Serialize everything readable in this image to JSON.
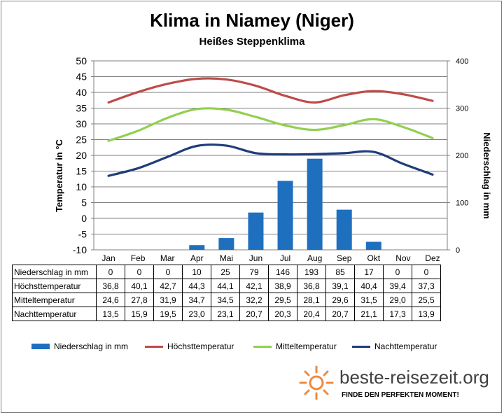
{
  "title": "Klima in Niamey (Niger)",
  "subtitle": "Heißes Steppenklima",
  "chart_data": {
    "type": "bar+line",
    "categories": [
      "Jan",
      "Feb",
      "Mar",
      "Apr",
      "Mai",
      "Jun",
      "Jul",
      "Aug",
      "Sep",
      "Okt",
      "Nov",
      "Dez"
    ],
    "ylabel_left": "Temperatur in °C",
    "ylabel_right": "Niederschlag in mm",
    "ylim_left": [
      -10,
      50
    ],
    "yticks_left": [
      "50",
      "45",
      "40",
      "35",
      "30",
      "25",
      "20",
      "15",
      "10",
      "5",
      "0",
      "-5",
      "-10"
    ],
    "ylim_right": [
      0,
      400
    ],
    "yticks_right": [
      "400",
      "300",
      "200",
      "100",
      "0"
    ],
    "grid": true,
    "series": [
      {
        "name": "Niederschlag in mm",
        "type": "bar",
        "axis": "right",
        "color": "#1f6fbf",
        "values": [
          0,
          0,
          0,
          10,
          25,
          79,
          146,
          193,
          85,
          17,
          0,
          0
        ]
      },
      {
        "name": "Höchsttemperatur",
        "type": "line",
        "axis": "left",
        "color": "#be4b48",
        "values": [
          36.8,
          40.1,
          42.7,
          44.3,
          44.1,
          42.1,
          38.9,
          36.8,
          39.1,
          40.4,
          39.4,
          37.3
        ]
      },
      {
        "name": "Mitteltemperatur",
        "type": "line",
        "axis": "left",
        "color": "#92d050",
        "values": [
          24.6,
          27.8,
          31.9,
          34.7,
          34.5,
          32.2,
          29.5,
          28.1,
          29.6,
          31.5,
          29.0,
          25.5
        ]
      },
      {
        "name": "Nachttemperatur",
        "type": "line",
        "axis": "left",
        "color": "#1f3d7a",
        "values": [
          13.5,
          15.9,
          19.5,
          23.0,
          23.1,
          20.7,
          20.3,
          20.4,
          20.7,
          21.1,
          17.3,
          13.9
        ]
      }
    ],
    "legend_position": "bottom"
  },
  "table": {
    "rows": [
      {
        "label": "Niederschlag in mm",
        "values": [
          "0",
          "0",
          "0",
          "10",
          "25",
          "79",
          "146",
          "193",
          "85",
          "17",
          "0",
          "0"
        ]
      },
      {
        "label": "Höchsttemperatur",
        "values": [
          "36,8",
          "40,1",
          "42,7",
          "44,3",
          "44,1",
          "42,1",
          "38,9",
          "36,8",
          "39,1",
          "40,4",
          "39,4",
          "37,3"
        ]
      },
      {
        "label": "Mitteltemperatur",
        "values": [
          "24,6",
          "27,8",
          "31,9",
          "34,7",
          "34,5",
          "32,2",
          "29,5",
          "28,1",
          "29,6",
          "31,5",
          "29,0",
          "25,5"
        ]
      },
      {
        "label": "Nachttemperatur",
        "values": [
          "13,5",
          "15,9",
          "19,5",
          "23,0",
          "23,1",
          "20,7",
          "20,3",
          "20,4",
          "20,7",
          "21,1",
          "17,3",
          "13,9"
        ]
      }
    ]
  },
  "branding": {
    "name": "beste-reisezeit.org",
    "tagline": "FINDE DEN PERFEKTEN MOMENT!",
    "logo_icon": "sun-icon",
    "logo_color": "#f08a3c"
  }
}
